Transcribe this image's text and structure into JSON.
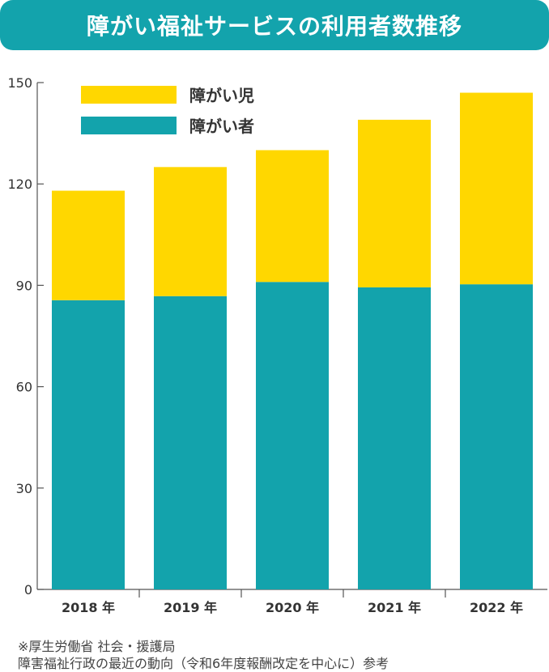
{
  "header": {
    "title": "障がい福祉サービスの利用者数推移"
  },
  "chart_data": {
    "type": "bar",
    "stacked": true,
    "categories": [
      "2018 年",
      "2019 年",
      "2020 年",
      "2021 年",
      "2022 年"
    ],
    "series": [
      {
        "name": "障がい者",
        "color": "#13a3ac",
        "values": [
          85.6,
          86.8,
          91,
          89.4,
          90.3
        ]
      },
      {
        "name": "障がい児",
        "color": "#ffd700",
        "values": [
          32.4,
          38.2,
          39,
          49.6,
          56.7
        ]
      }
    ],
    "y_ticks": [
      "0",
      "30",
      "60",
      "90",
      "120",
      "150"
    ],
    "ylim": [
      0,
      150
    ],
    "grid": false,
    "legend_position": "top-left",
    "legend": [
      {
        "label": "障がい児",
        "color": "#ffd700"
      },
      {
        "label": "障がい者",
        "color": "#13a3ac"
      }
    ]
  },
  "source": {
    "line1": "※厚生労働省 社会・援護局",
    "line2": "障害福祉行政の最近の動向（令和6年度報酬改定を中心に）参考"
  }
}
